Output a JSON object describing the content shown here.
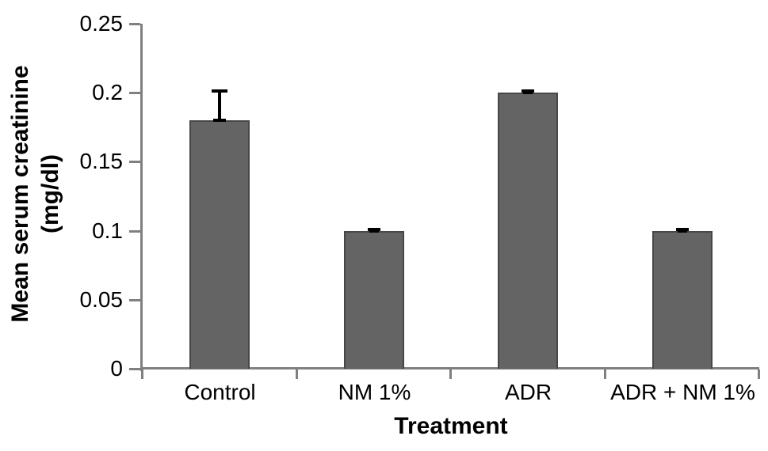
{
  "chart_data": {
    "type": "bar",
    "title": "",
    "xlabel": "Treatment",
    "ylabel": "Mean serum creatinine (mg/dl)",
    "ylabel_line1": "Mean serum creatinine",
    "ylabel_line2": "(mg/dl)",
    "categories": [
      "Control",
      "NM 1%",
      "ADR",
      "ADR + NM 1%"
    ],
    "values": [
      0.18,
      0.1,
      0.2,
      0.1
    ],
    "errors_up": [
      0.021,
      0.001,
      0.001,
      0.001
    ],
    "ylim": [
      0,
      0.25
    ],
    "yticks": [
      0,
      0.05,
      0.1,
      0.15,
      0.2,
      0.25
    ],
    "ytick_labels": [
      "0",
      "0.05",
      "0.1",
      "0.15",
      "0.2",
      "0.25"
    ],
    "grid": "off",
    "legend": "none",
    "colors": {
      "bar_fill": "#646464",
      "bar_border": "#474747",
      "axis": "#808080",
      "error_bar": "#000000",
      "text": "#000000",
      "background": "#ffffff"
    }
  }
}
